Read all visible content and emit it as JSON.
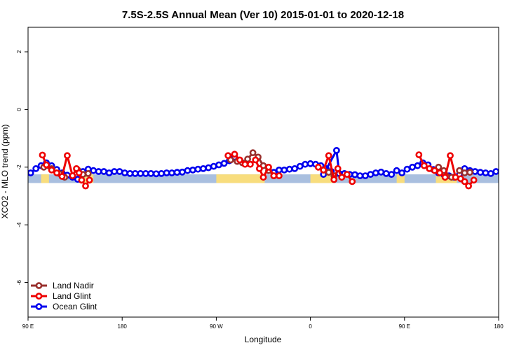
{
  "chart_data": {
    "type": "line",
    "title": "7.5S-2.5S Annual Mean (Ver 10)   2015-01-01 to 2020-12-18",
    "xlabel": "Longitude",
    "ylabel": "XCO2 - MLO trend (ppm)",
    "xlim": [
      90,
      450
    ],
    "ylim": [
      -7.2,
      2.85
    ],
    "x_ticks": [
      {
        "value": 90,
        "label": "90 E"
      },
      {
        "value": 162,
        "label": "180"
      },
      {
        "value": 234,
        "label": "90 W"
      },
      {
        "value": 306,
        "label": "0"
      },
      {
        "value": 378,
        "label": "90 E"
      },
      {
        "value": 450,
        "label": "180"
      }
    ],
    "y_ticks": [
      {
        "value": 2,
        "label": "2"
      },
      {
        "value": 0,
        "label": "0"
      },
      {
        "value": -2,
        "label": "-2"
      },
      {
        "value": -4,
        "label": "-4"
      },
      {
        "value": -6,
        "label": "-6"
      }
    ],
    "grid": false,
    "legend_position": "bottom-left",
    "background_bands": [
      {
        "x": [
          90,
          450
        ],
        "y": [
          -2.55,
          -2.25
        ],
        "color": "#a9bfdf"
      },
      {
        "x": [
          100,
          106
        ],
        "y": [
          -2.55,
          -2.25
        ],
        "color": "#f8dd7d"
      },
      {
        "x": [
          133,
          140
        ],
        "y": [
          -2.55,
          -2.25
        ],
        "color": "#f8dd7d"
      },
      {
        "x": [
          234,
          271
        ],
        "y": [
          -2.55,
          -2.25
        ],
        "color": "#f8dd7d"
      },
      {
        "x": [
          306,
          323
        ],
        "y": [
          -2.55,
          -2.25
        ],
        "color": "#f8dd7d"
      },
      {
        "x": [
          372,
          378
        ],
        "y": [
          -2.55,
          -2.25
        ],
        "color": "#f8dd7d"
      },
      {
        "x": [
          402,
          418
        ],
        "y": [
          -2.55,
          -2.25
        ],
        "color": "#f8dd7d"
      }
    ],
    "series": [
      {
        "name": "Ocean Glint",
        "color": "#0000ee",
        "segments": [
          [
            [
              92,
              -2.2
            ],
            [
              96,
              -2.05
            ],
            [
              100,
              -1.95
            ],
            [
              104,
              -1.85
            ],
            [
              108,
              -1.95
            ],
            [
              112,
              -2.08
            ],
            [
              116,
              -2.2
            ],
            [
              120,
              -2.28
            ],
            [
              124,
              -2.35
            ],
            [
              128,
              -2.42
            ],
            [
              132,
              -2.15
            ],
            [
              136,
              -2.07
            ],
            [
              140,
              -2.12
            ],
            [
              144,
              -2.15
            ],
            [
              148,
              -2.15
            ],
            [
              152,
              -2.2
            ],
            [
              156,
              -2.15
            ],
            [
              160,
              -2.15
            ],
            [
              164,
              -2.2
            ],
            [
              168,
              -2.22
            ],
            [
              172,
              -2.22
            ],
            [
              176,
              -2.22
            ],
            [
              180,
              -2.22
            ],
            [
              184,
              -2.22
            ],
            [
              188,
              -2.23
            ],
            [
              192,
              -2.22
            ],
            [
              196,
              -2.2
            ],
            [
              200,
              -2.2
            ],
            [
              204,
              -2.18
            ],
            [
              208,
              -2.17
            ],
            [
              212,
              -2.12
            ],
            [
              216,
              -2.1
            ],
            [
              220,
              -2.07
            ],
            [
              224,
              -2.05
            ],
            [
              228,
              -2.02
            ],
            [
              232,
              -1.97
            ],
            [
              236,
              -1.92
            ],
            [
              240,
              -1.87
            ],
            [
              244,
              -1.78
            ],
            [
              248,
              -1.65
            ]
          ],
          [
            [
              278,
              -2.18
            ],
            [
              282,
              -2.1
            ],
            [
              286,
              -2.1
            ],
            [
              290,
              -2.07
            ],
            [
              294,
              -2.05
            ],
            [
              298,
              -1.97
            ],
            [
              302,
              -1.9
            ],
            [
              306,
              -1.88
            ],
            [
              310,
              -1.9
            ],
            [
              314,
              -1.95
            ],
            [
              318,
              -2.05
            ],
            [
              322,
              -2.15
            ]
          ],
          [
            [
              316,
              -2.25
            ],
            [
              326,
              -1.42
            ],
            [
              328,
              -2.22
            ],
            [
              332,
              -2.22
            ],
            [
              336,
              -2.25
            ],
            [
              340,
              -2.26
            ],
            [
              344,
              -2.3
            ],
            [
              348,
              -2.3
            ],
            [
              352,
              -2.25
            ],
            [
              356,
              -2.2
            ],
            [
              360,
              -2.17
            ],
            [
              364,
              -2.22
            ],
            [
              368,
              -2.25
            ],
            [
              372,
              -2.12
            ],
            [
              376,
              -2.2
            ],
            [
              380,
              -2.07
            ],
            [
              384,
              -2.0
            ],
            [
              388,
              -1.95
            ],
            [
              392,
              -1.85
            ],
            [
              396,
              -1.92
            ],
            [
              400,
              -2.08
            ],
            [
              404,
              -2.2
            ],
            [
              408,
              -2.25
            ],
            [
              412,
              -2.3
            ],
            [
              416,
              -2.35
            ],
            [
              420,
              -2.25
            ],
            [
              424,
              -2.05
            ],
            [
              428,
              -2.12
            ],
            [
              432,
              -2.15
            ],
            [
              436,
              -2.18
            ],
            [
              440,
              -2.2
            ],
            [
              444,
              -2.22
            ],
            [
              448,
              -2.15
            ],
            [
              452,
              -2.15
            ]
          ]
        ]
      },
      {
        "name": "Land Nadir",
        "color": "#99302d",
        "segments": [
          [
            [
              102,
              -2.0
            ],
            [
              108,
              -2.05
            ],
            [
              114,
              -2.22
            ],
            [
              118,
              -2.35
            ]
          ],
          [
            [
              128,
              -2.1
            ],
            [
              132,
              -2.25
            ],
            [
              136,
              -2.22
            ]
          ],
          [
            [
              245,
              -1.75
            ],
            [
              250,
              -1.8
            ],
            [
              254,
              -1.85
            ],
            [
              258,
              -1.72
            ],
            [
              262,
              -1.5
            ],
            [
              266,
              -1.65
            ],
            [
              270,
              -1.95
            ],
            [
              274,
              -2.12
            ],
            [
              278,
              -2.3
            ]
          ],
          [
            [
              316,
              -2.1
            ],
            [
              320,
              -2.18
            ],
            [
              324,
              -2.3
            ]
          ],
          [
            [
              404,
              -2.0
            ],
            [
              408,
              -2.12
            ],
            [
              414,
              -2.35
            ]
          ],
          [
            [
              420,
              -2.12
            ],
            [
              424,
              -2.2
            ],
            [
              428,
              -2.18
            ]
          ]
        ]
      },
      {
        "name": "Land Glint",
        "color": "#ee0000",
        "segments": [
          [
            [
              101,
              -1.58
            ],
            [
              104,
              -1.92
            ],
            [
              108,
              -2.1
            ],
            [
              112,
              -2.2
            ],
            [
              116,
              -2.32
            ],
            [
              120,
              -1.6
            ],
            [
              124,
              -2.3
            ],
            [
              127,
              -2.05
            ],
            [
              129,
              -2.2
            ],
            [
              131,
              -2.45
            ],
            [
              134,
              -2.65
            ],
            [
              137,
              -2.45
            ]
          ],
          [
            [
              243,
              -1.6
            ],
            [
              248,
              -1.55
            ],
            [
              252,
              -1.75
            ],
            [
              256,
              -1.9
            ],
            [
              260,
              -1.9
            ],
            [
              264,
              -1.75
            ],
            [
              267,
              -2.05
            ],
            [
              270,
              -2.35
            ],
            [
              274,
              -2.0
            ],
            [
              278,
              -2.3
            ],
            [
              282,
              -2.3
            ]
          ],
          [
            [
              312,
              -2.0
            ],
            [
              316,
              -2.1
            ],
            [
              320,
              -1.6
            ],
            [
              324,
              -2.43
            ],
            [
              327,
              -2.05
            ],
            [
              330,
              -2.35
            ],
            [
              334,
              -2.25
            ],
            [
              338,
              -2.5
            ]
          ],
          [
            [
              389,
              -1.57
            ],
            [
              393,
              -1.95
            ],
            [
              397,
              -2.05
            ],
            [
              401,
              -2.12
            ],
            [
              405,
              -2.2
            ],
            [
              409,
              -2.35
            ],
            [
              413,
              -1.6
            ],
            [
              417,
              -2.35
            ],
            [
              421,
              -2.4
            ],
            [
              424,
              -2.5
            ],
            [
              427,
              -2.65
            ],
            [
              431,
              -2.45
            ]
          ]
        ]
      }
    ]
  }
}
